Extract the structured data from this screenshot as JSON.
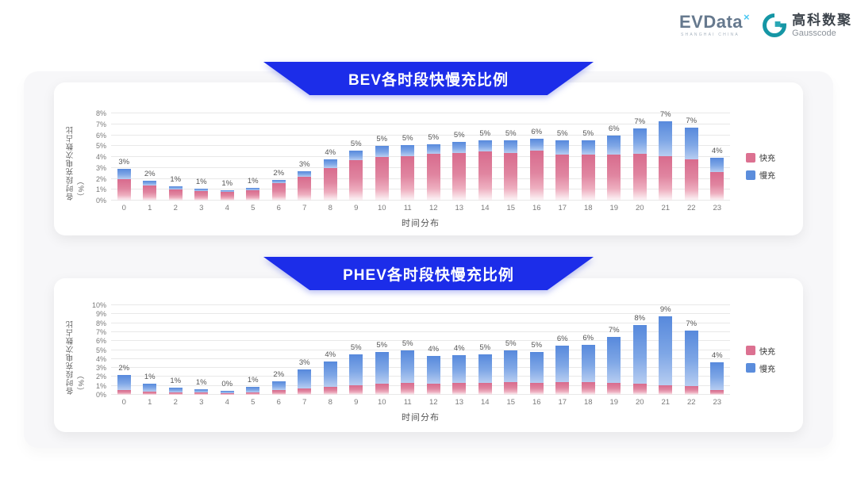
{
  "header": {
    "evdata_logo": {
      "text": "EVData",
      "superscript": "×",
      "subtext": "SHANGHAI CHINA"
    },
    "gausscode_logo": {
      "cn": "高科数聚",
      "en": "Gausscode"
    }
  },
  "colors": {
    "banner_blue": "#1C2DE9",
    "fast_pink": "#DC7191",
    "slow_blue": "#5B8DDC",
    "gausscode_teal": "#1596A5"
  },
  "chart_data": [
    {
      "type": "bar",
      "stacked": true,
      "title": "BEV各时段快慢充比例",
      "xlabel": "时间分布",
      "ylabel": "各时段充电次数占比（%）",
      "ylim": [
        0,
        8
      ],
      "yticks": [
        "0%",
        "1%",
        "2%",
        "3%",
        "4%",
        "5%",
        "6%",
        "7%",
        "8%"
      ],
      "grid": true,
      "legend_position": "right",
      "categories": [
        "0",
        "1",
        "2",
        "3",
        "4",
        "5",
        "6",
        "7",
        "8",
        "9",
        "10",
        "11",
        "12",
        "13",
        "14",
        "15",
        "16",
        "17",
        "18",
        "19",
        "20",
        "21",
        "22",
        "23"
      ],
      "series": [
        {
          "name": "快充",
          "color": "#DC7191",
          "values": [
            2.0,
            1.4,
            1.0,
            0.85,
            0.8,
            0.95,
            1.6,
            2.2,
            3.0,
            3.7,
            4.0,
            4.1,
            4.3,
            4.4,
            4.5,
            4.4,
            4.6,
            4.2,
            4.2,
            4.2,
            4.3,
            4.1,
            3.8,
            2.6
          ]
        },
        {
          "name": "慢充",
          "color": "#5B8DDC",
          "values": [
            0.9,
            0.4,
            0.3,
            0.25,
            0.15,
            0.25,
            0.3,
            0.5,
            0.8,
            0.9,
            1.0,
            1.0,
            0.9,
            1.0,
            1.0,
            1.1,
            1.1,
            1.3,
            1.3,
            1.8,
            2.3,
            3.2,
            2.9,
            1.3
          ]
        }
      ],
      "total_labels": [
        "3%",
        "2%",
        "1%",
        "1%",
        "1%",
        "1%",
        "2%",
        "3%",
        "4%",
        "5%",
        "5%",
        "5%",
        "5%",
        "5%",
        "5%",
        "5%",
        "6%",
        "5%",
        "5%",
        "6%",
        "7%",
        "7%",
        "7%",
        "4%"
      ]
    },
    {
      "type": "bar",
      "stacked": true,
      "title": "PHEV各时段快慢充比例",
      "xlabel": "时间分布",
      "ylabel": "各时段充电次数占比（%）",
      "ylim": [
        0,
        10
      ],
      "yticks": [
        "0%",
        "1%",
        "2%",
        "3%",
        "4%",
        "5%",
        "6%",
        "7%",
        "8%",
        "9%",
        "10%"
      ],
      "grid": true,
      "legend_position": "right",
      "categories": [
        "0",
        "1",
        "2",
        "3",
        "4",
        "5",
        "6",
        "7",
        "8",
        "9",
        "10",
        "11",
        "12",
        "13",
        "14",
        "15",
        "16",
        "17",
        "18",
        "19",
        "20",
        "21",
        "22",
        "23"
      ],
      "series": [
        {
          "name": "快充",
          "color": "#DC7191",
          "values": [
            0.5,
            0.4,
            0.3,
            0.25,
            0.2,
            0.3,
            0.55,
            0.75,
            0.9,
            1.1,
            1.2,
            1.3,
            1.2,
            1.3,
            1.3,
            1.4,
            1.3,
            1.4,
            1.4,
            1.3,
            1.2,
            1.1,
            1.0,
            0.5
          ]
        },
        {
          "name": "慢充",
          "color": "#5B8DDC",
          "values": [
            1.7,
            0.8,
            0.5,
            0.35,
            0.25,
            0.55,
            0.95,
            2.05,
            2.8,
            3.4,
            3.6,
            3.7,
            3.1,
            3.1,
            3.2,
            3.6,
            3.5,
            4.1,
            4.2,
            5.2,
            6.6,
            7.7,
            6.2,
            3.1
          ]
        }
      ],
      "total_labels": [
        "2%",
        "1%",
        "1%",
        "1%",
        "0%",
        "1%",
        "2%",
        "3%",
        "4%",
        "5%",
        "5%",
        "5%",
        "4%",
        "4%",
        "5%",
        "5%",
        "5%",
        "6%",
        "6%",
        "7%",
        "8%",
        "9%",
        "7%",
        "4%"
      ]
    }
  ]
}
